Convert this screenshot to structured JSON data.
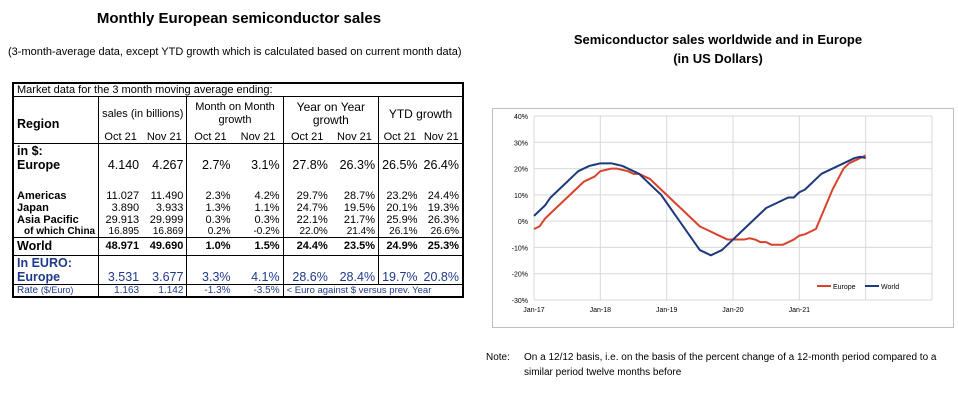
{
  "left": {
    "title": "Monthly European semiconductor sales",
    "subtitle": "(3-month-average data, except YTD growth which is calculated based on current month data)",
    "table_caption": "Market data for the 3 month moving average ending:",
    "col_region": "Region",
    "col_sales": "sales (in billions)",
    "col_mom": "Month on Month growth",
    "col_yoy": "Year on Year growth",
    "col_ytd": "YTD growth",
    "months": [
      "Oct 21",
      "Nov 21",
      "Oct 21",
      "Nov 21",
      "Oct 21",
      "Nov 21",
      "Oct 21",
      "Nov 21"
    ],
    "in_usd_label": "in $:",
    "rows": [
      {
        "name": "Europe",
        "values": [
          "4.140",
          "4.267",
          "2.7%",
          "3.1%",
          "27.8%",
          "26.3%",
          "26.5%",
          "26.4%"
        ]
      },
      {
        "name": "Americas",
        "values": [
          "11.027",
          "11.490",
          "2.3%",
          "4.2%",
          "29.7%",
          "28.7%",
          "23.2%",
          "24.4%"
        ]
      },
      {
        "name": "Japan",
        "values": [
          "3.890",
          "3.933",
          "1.3%",
          "1.1%",
          "24.7%",
          "19.5%",
          "20.1%",
          "19.3%"
        ]
      },
      {
        "name": "Asia Pacific",
        "values": [
          "29.913",
          "29.999",
          "0.3%",
          "0.3%",
          "22.1%",
          "21.7%",
          "25.9%",
          "26.3%"
        ]
      },
      {
        "name": "of which China",
        "values": [
          "16.895",
          "16.869",
          "0.2%",
          "-0.2%",
          "22.0%",
          "21.4%",
          "26.1%",
          "26.6%"
        ]
      },
      {
        "name": "World",
        "values": [
          "48.971",
          "49.690",
          "1.0%",
          "1.5%",
          "24.4%",
          "23.5%",
          "24.9%",
          "25.3%"
        ]
      }
    ],
    "in_euro_label": "In EURO:",
    "euro_row": {
      "name": "Europe",
      "values": [
        "3.531",
        "3.677",
        "3.3%",
        "4.1%",
        "28.6%",
        "28.4%",
        "19.7%",
        "20.8%"
      ]
    },
    "rate_row": {
      "name": "Rate",
      "unit": "($/Euro)",
      "values": [
        "1.163",
        "1.142",
        "-1.3%",
        "-3.5%"
      ],
      "note": "< Euro against $ versus prev. Year"
    }
  },
  "chart_title_line1": "Semiconductor sales worldwide and in Europe",
  "chart_title_line2": "(in US Dollars)",
  "chart_data": {
    "type": "line",
    "title": "Semiconductor sales worldwide and in Europe (in US Dollars)",
    "x_ticks": [
      "Jan-17",
      "Jan-18",
      "Jan-19",
      "Jan-20",
      "Jan-21"
    ],
    "ylim": [
      -30,
      40
    ],
    "y_ticks": [
      "40%",
      "30%",
      "20%",
      "10%",
      "0%",
      "-10%",
      "-20%",
      "-30%"
    ],
    "legend_position": "bottom-right",
    "x_months_from": "Jan-17",
    "series": [
      {
        "name": "Europe",
        "color": "#d9422b",
        "values": [
          -3,
          -2,
          1,
          3,
          5,
          7,
          9,
          11,
          13,
          15,
          16,
          17,
          19,
          19.5,
          20,
          20,
          19.5,
          19,
          18,
          18,
          17,
          16,
          14,
          12,
          10,
          8,
          6,
          4,
          2,
          0,
          -2,
          -3,
          -4,
          -5,
          -6,
          -7,
          -7,
          -7,
          -7,
          -6.5,
          -7,
          -8,
          -8,
          -9,
          -9,
          -9,
          -8,
          -7,
          -5.5,
          -5,
          -4,
          -3,
          2,
          7,
          12,
          16,
          20,
          22,
          23,
          24,
          25
        ]
      },
      {
        "name": "World",
        "color": "#1f3a7a",
        "values": [
          2,
          4,
          6,
          9,
          11,
          13,
          15,
          17,
          19,
          20,
          21,
          21.5,
          22,
          22,
          22,
          21.5,
          21,
          20,
          19,
          18,
          16,
          14,
          12,
          10,
          7,
          4,
          1,
          -2,
          -5,
          -8,
          -11,
          -12,
          -13,
          -12,
          -11,
          -9,
          -7,
          -5,
          -3,
          -1,
          1,
          3,
          5,
          6,
          7,
          8,
          9,
          9,
          11,
          12,
          14,
          16,
          18,
          19,
          20,
          21,
          22,
          23,
          24,
          24.5,
          24
        ]
      }
    ]
  },
  "note": {
    "label": "Note:",
    "text": "On a 12/12 basis, i.e. on the basis of the percent change of a 12-month period compared to a similar period twelve months before"
  }
}
